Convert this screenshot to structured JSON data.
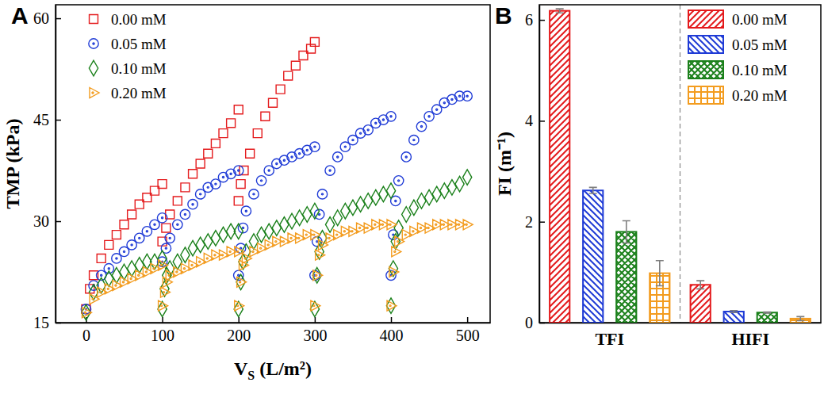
{
  "chart_data": [
    {
      "type": "scatter",
      "title": "A",
      "x_label": "VS (L/m²)",
      "y_label": "TMP (kPa)",
      "xlim": [
        -40,
        530
      ],
      "ylim": [
        15,
        62
      ],
      "xticks": [
        0,
        100,
        200,
        300,
        400,
        500
      ],
      "yticks": [
        15,
        30,
        45,
        60
      ],
      "legend": "upper left",
      "series": [
        {
          "name": "0.00 mM",
          "color": "#e41a1c",
          "marker": "square",
          "x": [
            0,
            5,
            10,
            20,
            30,
            40,
            50,
            60,
            70,
            80,
            90,
            100,
            100,
            105,
            110,
            120,
            130,
            140,
            150,
            160,
            170,
            180,
            190,
            200,
            200,
            203,
            207,
            215,
            225,
            235,
            245,
            255,
            265,
            275,
            285,
            295,
            300
          ],
          "values": [
            17,
            20,
            22,
            24.5,
            26.5,
            28,
            29.5,
            31,
            32.5,
            33.5,
            34.5,
            35.5,
            27,
            29,
            31,
            33,
            35,
            37,
            38.5,
            40,
            41.5,
            43,
            44.5,
            46.5,
            33,
            35.5,
            37.5,
            40,
            43,
            45.5,
            47.5,
            49.5,
            51.5,
            53,
            54.5,
            55.5,
            56.5
          ]
        },
        {
          "name": "0.05 mM",
          "color": "#1f3bd6",
          "marker": "circle",
          "x": [
            0,
            10,
            20,
            30,
            40,
            50,
            60,
            70,
            80,
            90,
            100,
            100,
            105,
            110,
            120,
            130,
            140,
            150,
            160,
            170,
            180,
            190,
            200,
            200,
            203,
            206,
            210,
            220,
            230,
            240,
            250,
            260,
            270,
            280,
            290,
            300,
            300,
            303,
            306,
            310,
            320,
            330,
            340,
            350,
            360,
            370,
            380,
            390,
            400,
            400,
            403,
            406,
            410,
            420,
            430,
            440,
            450,
            460,
            470,
            480,
            490,
            500
          ],
          "values": [
            17,
            20.5,
            22,
            23,
            24.5,
            25.5,
            26.5,
            27.5,
            28.5,
            29.5,
            30.5,
            24,
            26,
            27.5,
            29.5,
            31,
            32.5,
            34,
            35,
            35.5,
            36.5,
            37,
            37.5,
            22,
            26,
            29,
            31.5,
            34,
            36,
            37.5,
            38.5,
            39,
            39.5,
            40,
            40.5,
            41,
            22,
            27,
            31,
            34,
            37.5,
            39.5,
            41,
            42,
            43,
            43.5,
            44.5,
            45,
            45.5,
            22,
            28,
            33,
            36,
            39.5,
            42,
            44,
            45.5,
            46.5,
            47.5,
            48,
            48.5,
            48.5
          ]
        },
        {
          "name": "0.10 mM",
          "color": "#1a801a",
          "marker": "diamond",
          "x": [
            0,
            10,
            20,
            30,
            40,
            50,
            60,
            70,
            80,
            90,
            100,
            100,
            103,
            106,
            110,
            120,
            130,
            140,
            150,
            160,
            170,
            180,
            190,
            200,
            200,
            203,
            206,
            210,
            220,
            230,
            240,
            250,
            260,
            270,
            280,
            290,
            300,
            300,
            303,
            306,
            310,
            320,
            330,
            340,
            350,
            360,
            370,
            380,
            390,
            400,
            400,
            403,
            406,
            410,
            420,
            430,
            440,
            450,
            460,
            470,
            480,
            490,
            500
          ],
          "values": [
            16.5,
            19.5,
            20.5,
            21.5,
            22,
            22.5,
            23,
            23.5,
            24,
            24,
            24.5,
            17,
            20,
            22,
            23,
            24,
            25,
            26,
            26.5,
            27,
            27.5,
            28,
            28.5,
            28.5,
            17,
            21,
            24,
            25.5,
            27,
            28,
            28.5,
            29,
            29.5,
            30,
            30.5,
            31,
            31.5,
            17,
            22,
            25.5,
            27.5,
            29.5,
            30.5,
            31.5,
            32,
            32.5,
            33,
            33.5,
            34,
            34.5,
            17.5,
            23,
            27,
            29,
            31,
            32,
            33,
            33.5,
            34,
            34.5,
            35,
            35.5,
            36.5
          ]
        },
        {
          "name": "0.20 mM",
          "color": "#f39c1f",
          "marker": "triangle-right",
          "x": [
            0,
            10,
            20,
            30,
            40,
            50,
            60,
            70,
            80,
            90,
            100,
            100,
            103,
            106,
            110,
            120,
            130,
            140,
            150,
            160,
            170,
            180,
            190,
            200,
            200,
            203,
            206,
            210,
            220,
            230,
            240,
            250,
            260,
            270,
            280,
            290,
            300,
            300,
            303,
            306,
            310,
            320,
            330,
            340,
            350,
            360,
            370,
            380,
            390,
            400,
            400,
            403,
            406,
            410,
            420,
            430,
            440,
            450,
            460,
            470,
            480,
            490,
            500
          ],
          "values": [
            16.5,
            18.5,
            19.5,
            20,
            20.5,
            21,
            21.5,
            22,
            22.5,
            23,
            23.5,
            17.5,
            19.5,
            21,
            22,
            22.5,
            23,
            23.5,
            24,
            24.5,
            25,
            25,
            25.5,
            25.5,
            17.5,
            21,
            23.5,
            24.5,
            25.5,
            26,
            26.5,
            27,
            27,
            27.5,
            27.5,
            28,
            28,
            17.5,
            22,
            25,
            26.5,
            27.5,
            28,
            28.5,
            28.5,
            29,
            29,
            29.5,
            29.5,
            29.5,
            17.5,
            22.5,
            25.5,
            27,
            28,
            28.5,
            29,
            29,
            29.5,
            29.5,
            29.5,
            29.5,
            29.5
          ]
        }
      ]
    },
    {
      "type": "bar",
      "title": "B",
      "y_label": "FI (m⁻¹)",
      "categories": [
        "TFI",
        "HIFI"
      ],
      "ylim": [
        0,
        6.3
      ],
      "yticks": [
        0,
        2,
        4,
        6
      ],
      "legend": "upper right",
      "series": [
        {
          "name": "0.00 mM",
          "color": "#e41a1c",
          "values": [
            6.18,
            0.75
          ],
          "errors": [
            0.04,
            0.08
          ]
        },
        {
          "name": "0.05 mM",
          "color": "#1f3bd6",
          "values": [
            2.62,
            0.22
          ],
          "errors": [
            0.06,
            0.02
          ]
        },
        {
          "name": "0.10 mM",
          "color": "#1a801a",
          "values": [
            1.8,
            0.2
          ],
          "errors": [
            0.22,
            0.01
          ]
        },
        {
          "name": "0.20 mM",
          "color": "#f39c1f",
          "values": [
            0.98,
            0.08
          ],
          "errors": [
            0.25,
            0.04
          ]
        }
      ]
    }
  ]
}
